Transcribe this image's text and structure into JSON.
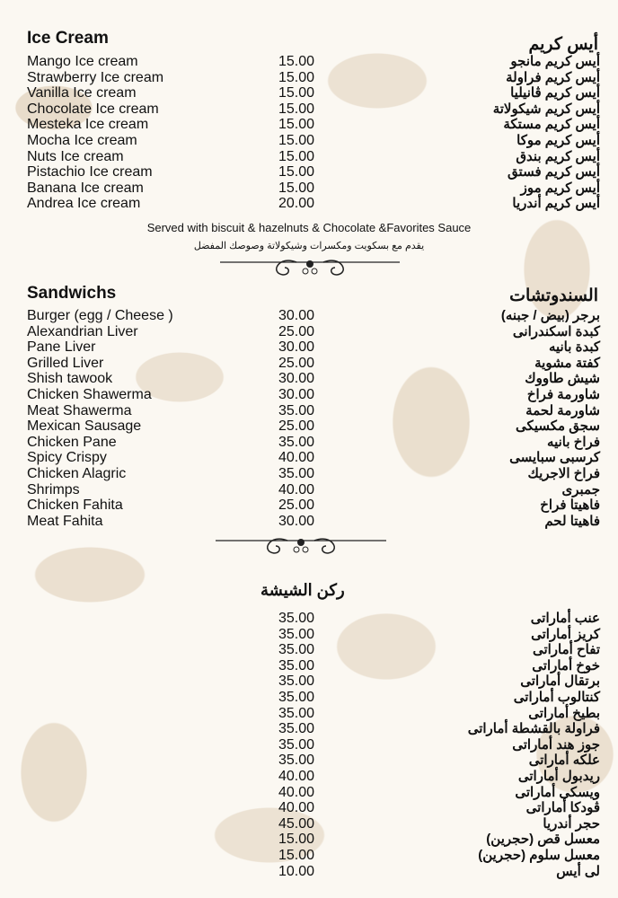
{
  "ice_cream": {
    "title_en": "Ice Cream",
    "title_ar": "أيس كريم",
    "items": [
      {
        "en": "Mango Ice cream",
        "price": "15.00",
        "ar": "أيس كريم مانجو"
      },
      {
        "en": "Strawberry Ice cream",
        "price": "15.00",
        "ar": "أيس كريم فراولة"
      },
      {
        "en": "Vanilla Ice cream",
        "price": "15.00",
        "ar": "أيس كريم ڤانيليا"
      },
      {
        "en": "Chocolate Ice cream",
        "price": "15.00",
        "ar": "أيس كريم شيكولاتة"
      },
      {
        "en": "Mesteka Ice cream",
        "price": "15.00",
        "ar": "أيس كريم مستكة"
      },
      {
        "en": "Mocha Ice cream",
        "price": "15.00",
        "ar": "أيس كريم موكا"
      },
      {
        "en": "Nuts Ice cream",
        "price": "15.00",
        "ar": "أيس كريم بندق"
      },
      {
        "en": "Pistachio Ice cream",
        "price": "15.00",
        "ar": "أيس كريم فستق"
      },
      {
        "en": "Banana Ice cream",
        "price": "15.00",
        "ar": "أيس كريم موز"
      },
      {
        "en": "Andrea Ice cream",
        "price": "20.00",
        "ar": "أيس كريم أندريا"
      }
    ],
    "note_en": "Served with biscuit & hazelnuts & Chocolate &Favorites Sauce",
    "note_ar": "يقدم مع بسكويت ومكسرات وشيكولاتة وصوصك المفضل"
  },
  "sandwiches": {
    "title_en": "Sandwichs",
    "title_ar": "السندوتشات",
    "items": [
      {
        "en": "Burger (egg / Cheese )",
        "price": "30.00",
        "ar": "برجر (بيض / جبنه)"
      },
      {
        "en": "Alexandrian Liver",
        "price": "25.00",
        "ar": "كبدة اسكندرانى"
      },
      {
        "en": "Pane Liver",
        "price": "30.00",
        "ar": "كبدة بانيه"
      },
      {
        "en": "Grilled Liver",
        "price": "25.00",
        "ar": "كفتة مشوية"
      },
      {
        "en": "Shish tawook",
        "price": "30.00",
        "ar": "شيش طاووك"
      },
      {
        "en": "Chicken Shawerma",
        "price": "30.00",
        "ar": "شاورمة فراخ"
      },
      {
        "en": "Meat Shawerma",
        "price": "35.00",
        "ar": "شاورمة لحمة"
      },
      {
        "en": "Mexican Sausage",
        "price": "25.00",
        "ar": "سجق مكسيكى"
      },
      {
        "en": "Chicken Pane",
        "price": "35.00",
        "ar": "فراخ بانيه"
      },
      {
        "en": "Spicy Crispy",
        "price": "40.00",
        "ar": "كرسبى سبايسى"
      },
      {
        "en": "Chicken Alagric",
        "price": "35.00",
        "ar": "فراخ الاجريك"
      },
      {
        "en": "Shrimps",
        "price": "40.00",
        "ar": "جمبرى"
      },
      {
        "en": "Chicken Fahita",
        "price": "25.00",
        "ar": "فاهيتا فراخ"
      },
      {
        "en": "Meat Fahita",
        "price": "30.00",
        "ar": "فاهيتا لحم"
      }
    ]
  },
  "shisha": {
    "title_ar": "ركن الشيشة",
    "items": [
      {
        "price": "35.00",
        "ar": "عنب أماراتى"
      },
      {
        "price": "35.00",
        "ar": "كريز أماراتى"
      },
      {
        "price": "35.00",
        "ar": "تفاح أماراتى"
      },
      {
        "price": "35.00",
        "ar": "خوخ أماراتى"
      },
      {
        "price": "35.00",
        "ar": "برتقال أماراتى"
      },
      {
        "price": "35.00",
        "ar": "كنتالوب أماراتى"
      },
      {
        "price": "35.00",
        "ar": "بطيخ أماراتى"
      },
      {
        "price": "35.00",
        "ar": "فراولة بالقشطة أماراتى"
      },
      {
        "price": "35.00",
        "ar": "جوز هند أماراتى"
      },
      {
        "price": "35.00",
        "ar": "علكه أماراتى"
      },
      {
        "price": "40.00",
        "ar": "ريدبول أماراتى"
      },
      {
        "price": "40.00",
        "ar": "ويسكى أماراتى"
      },
      {
        "price": "40.00",
        "ar": "ڤودكا أماراتى"
      },
      {
        "price": "45.00",
        "ar": "حجر أندريا"
      },
      {
        "price": "15.00",
        "ar": "معسل قص (حجرين)"
      },
      {
        "price": "15.00",
        "ar": "معسل سلوم (حجرين)"
      },
      {
        "price": "10.00",
        "ar": "لى أيس"
      }
    ]
  },
  "colors": {
    "background": "#fbf8f2",
    "pattern": "#e8dccb",
    "text": "#111111"
  }
}
